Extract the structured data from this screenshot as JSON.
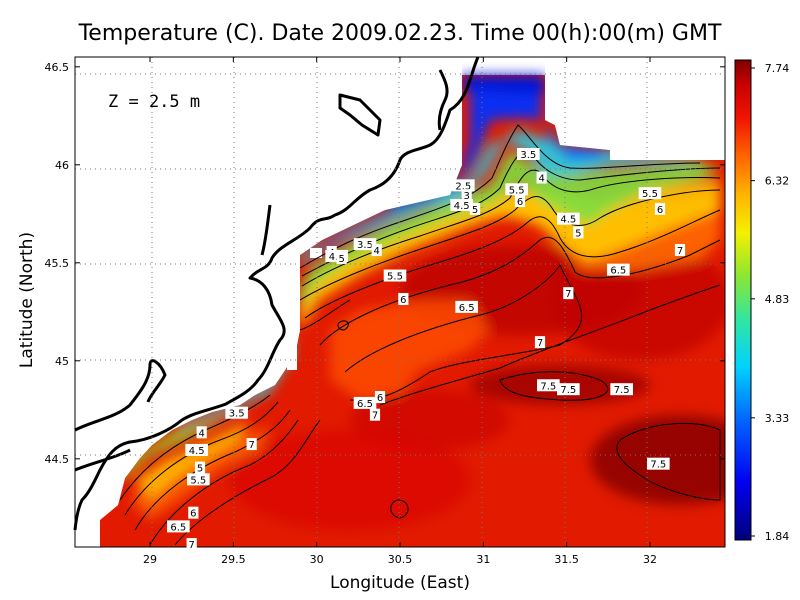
{
  "chart_data": {
    "type": "heatmap",
    "title": "Temperature (C). Date 2009.02.23. Time 00(h):00(m) GMT",
    "xlabel": "Longitude (East)",
    "ylabel": "Latitude (North)",
    "depth_label": "Z = 2.5 m",
    "xlim": [
      28.55,
      32.45
    ],
    "ylim": [
      44.05,
      46.55
    ],
    "x_ticks": [
      "29",
      "29.5",
      "30",
      "30.5",
      "31",
      "31.5",
      "32"
    ],
    "y_ticks": [
      "44.5",
      "45",
      "45.5",
      "46",
      "46.5"
    ],
    "grid": true,
    "colorbar": {
      "min": 1.84,
      "max": 7.74,
      "tick_labels": [
        "7.74",
        "6.32",
        "4.83",
        "3.33",
        "1.84"
      ],
      "tick_values": [
        7.74,
        6.32,
        4.83,
        3.33,
        1.84
      ]
    },
    "contour_labels": [
      {
        "text": "3.5",
        "lon": 31.27,
        "lat": 46.05
      },
      {
        "text": "4",
        "lon": 31.35,
        "lat": 45.93
      },
      {
        "text": "2.5",
        "lon": 30.88,
        "lat": 45.89
      },
      {
        "text": "3",
        "lon": 30.9,
        "lat": 45.84
      },
      {
        "text": "5.5",
        "lon": 31.2,
        "lat": 45.87
      },
      {
        "text": "6",
        "lon": 31.22,
        "lat": 45.81
      },
      {
        "text": "4.5",
        "lon": 30.87,
        "lat": 45.79
      },
      {
        "text": "5",
        "lon": 30.95,
        "lat": 45.77
      },
      {
        "text": "4.5",
        "lon": 31.51,
        "lat": 45.72
      },
      {
        "text": "5",
        "lon": 31.57,
        "lat": 45.65
      },
      {
        "text": "5.5",
        "lon": 32.0,
        "lat": 45.85
      },
      {
        "text": "6",
        "lon": 32.06,
        "lat": 45.77
      },
      {
        "text": "7",
        "lon": 32.18,
        "lat": 45.56
      },
      {
        "text": "6.5",
        "lon": 31.81,
        "lat": 45.46
      },
      {
        "text": "7",
        "lon": 31.51,
        "lat": 45.34
      },
      {
        "text": "3.5",
        "lon": 30.29,
        "lat": 45.59
      },
      {
        "text": "4",
        "lon": 30.36,
        "lat": 45.56
      },
      {
        "text": "4",
        "lon": 30.09,
        "lat": 45.55
      },
      {
        "text": "4.5",
        "lon": 30.12,
        "lat": 45.53
      },
      {
        "text": "5",
        "lon": 30.15,
        "lat": 45.52
      },
      {
        "text": "5.5",
        "lon": 30.47,
        "lat": 45.43
      },
      {
        "text": "6",
        "lon": 30.52,
        "lat": 45.31
      },
      {
        "text": "6.5",
        "lon": 30.9,
        "lat": 45.27
      },
      {
        "text": "7",
        "lon": 31.34,
        "lat": 45.09
      },
      {
        "text": "7.5",
        "lon": 31.39,
        "lat": 44.87
      },
      {
        "text": "7.5",
        "lon": 31.51,
        "lat": 44.85
      },
      {
        "text": "7.5",
        "lon": 31.83,
        "lat": 44.85
      },
      {
        "text": "7.5",
        "lon": 32.05,
        "lat": 44.47
      },
      {
        "text": "6",
        "lon": 30.38,
        "lat": 44.81
      },
      {
        "text": "6.5",
        "lon": 30.29,
        "lat": 44.78
      },
      {
        "text": "7",
        "lon": 30.35,
        "lat": 44.72
      },
      {
        "text": "3.5",
        "lon": 29.52,
        "lat": 44.73
      },
      {
        "text": "4",
        "lon": 29.31,
        "lat": 44.63
      },
      {
        "text": "4.5",
        "lon": 29.28,
        "lat": 44.54
      },
      {
        "text": "5",
        "lon": 29.3,
        "lat": 44.45
      },
      {
        "text": "5.5",
        "lon": 29.29,
        "lat": 44.39
      },
      {
        "text": "7",
        "lon": 29.61,
        "lat": 44.57
      },
      {
        "text": "6",
        "lon": 29.26,
        "lat": 44.22
      },
      {
        "text": "6.5",
        "lon": 29.17,
        "lat": 44.15
      },
      {
        "text": "7",
        "lon": 29.25,
        "lat": 44.06
      }
    ]
  }
}
